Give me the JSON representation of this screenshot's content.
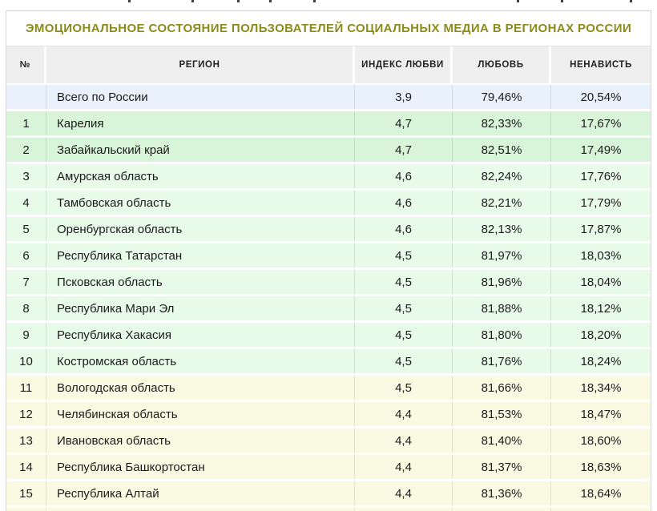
{
  "table": {
    "title": "ЭМОЦИОНАЛЬНОЕ СОСТОЯНИЕ ПОЛЬЗОВАТЕЛЕЙ СОЦИАЛЬНЫХ МЕДИА В РЕГИОНАХ РОССИИ",
    "columns": [
      {
        "label": "№"
      },
      {
        "label": "РЕГИОН"
      },
      {
        "label": "ИНДЕКС ЛЮБВИ"
      },
      {
        "label": "ЛЮБОВЬ"
      },
      {
        "label": "НЕНАВИСТЬ"
      }
    ],
    "rows": [
      {
        "num": "",
        "region": "Всего по России",
        "index": "3,9",
        "love": "79,46%",
        "hate": "20,54%",
        "tone": "blue"
      },
      {
        "num": "1",
        "region": "Карелия",
        "index": "4,7",
        "love": "82,33%",
        "hate": "17,67%",
        "tone": "green_strong"
      },
      {
        "num": "2",
        "region": "Забайкальский край",
        "index": "4,7",
        "love": "82,51%",
        "hate": "17,49%",
        "tone": "green_strong"
      },
      {
        "num": "3",
        "region": "Амурская область",
        "index": "4,6",
        "love": "82,24%",
        "hate": "17,76%",
        "tone": "green"
      },
      {
        "num": "4",
        "region": "Тамбовская область",
        "index": "4,6",
        "love": "82,21%",
        "hate": "17,79%",
        "tone": "green"
      },
      {
        "num": "5",
        "region": "Оренбургская область",
        "index": "4,6",
        "love": "82,13%",
        "hate": "17,87%",
        "tone": "green"
      },
      {
        "num": "6",
        "region": "Республика Татарстан",
        "index": "4,5",
        "love": "81,97%",
        "hate": "18,03%",
        "tone": "green"
      },
      {
        "num": "7",
        "region": "Псковская область",
        "index": "4,5",
        "love": "81,96%",
        "hate": "18,04%",
        "tone": "green"
      },
      {
        "num": "8",
        "region": "Республика Мари Эл",
        "index": "4,5",
        "love": "81,88%",
        "hate": "18,12%",
        "tone": "green"
      },
      {
        "num": "9",
        "region": "Республика Хакасия",
        "index": "4,5",
        "love": "81,80%",
        "hate": "18,20%",
        "tone": "green"
      },
      {
        "num": "10",
        "region": "Костромская область",
        "index": "4,5",
        "love": "81,76%",
        "hate": "18,24%",
        "tone": "green"
      },
      {
        "num": "11",
        "region": "Вологодская область",
        "index": "4,5",
        "love": "81,66%",
        "hate": "18,34%",
        "tone": "cream"
      },
      {
        "num": "12",
        "region": "Челябинская область",
        "index": "4,4",
        "love": "81,53%",
        "hate": "18,47%",
        "tone": "cream"
      },
      {
        "num": "13",
        "region": "Ивановская область",
        "index": "4,4",
        "love": "81,40%",
        "hate": "18,60%",
        "tone": "cream"
      },
      {
        "num": "14",
        "region": "Республика Башкортостан",
        "index": "4,4",
        "love": "81,37%",
        "hate": "18,63%",
        "tone": "cream"
      },
      {
        "num": "15",
        "region": "Республика Алтай",
        "index": "4,4",
        "love": "81,36%",
        "hate": "18,64%",
        "tone": "cream"
      }
    ],
    "partial_next_row": {
      "tone": "cream"
    },
    "colors": {
      "title_text": "#8a8b1a",
      "header_bg": "#efefef",
      "header_text": "#222222",
      "body_text": "#1b1b1b",
      "border": "#d6d6d6",
      "tone_blue": "#e9f2fc",
      "tone_green_strong": "#d9f5d9",
      "tone_green": "#e8fae8",
      "tone_cream": "#fafae3"
    }
  },
  "chart_data": {
    "type": "table",
    "title": "ЭМОЦИОНАЛЬНОЕ СОСТОЯНИЕ ПОЛЬЗОВАТЕЛЕЙ СОЦИАЛЬНЫХ МЕДИА В РЕГИОНАХ РОССИИ",
    "columns": [
      "№",
      "РЕГИОН",
      "ИНДЕКС ЛЮБВИ",
      "ЛЮБОВЬ",
      "НЕНАВИСТЬ"
    ],
    "rows": [
      [
        "",
        "Всего по России",
        "3,9",
        "79,46%",
        "20,54%"
      ],
      [
        "1",
        "Карелия",
        "4,7",
        "82,33%",
        "17,67%"
      ],
      [
        "2",
        "Забайкальский край",
        "4,7",
        "82,51%",
        "17,49%"
      ],
      [
        "3",
        "Амурская область",
        "4,6",
        "82,24%",
        "17,76%"
      ],
      [
        "4",
        "Тамбовская область",
        "4,6",
        "82,21%",
        "17,79%"
      ],
      [
        "5",
        "Оренбургская область",
        "4,6",
        "82,13%",
        "17,87%"
      ],
      [
        "6",
        "Республика Татарстан",
        "4,5",
        "81,97%",
        "18,03%"
      ],
      [
        "7",
        "Псковская область",
        "4,5",
        "81,96%",
        "18,04%"
      ],
      [
        "8",
        "Республика Мари Эл",
        "4,5",
        "81,88%",
        "18,12%"
      ],
      [
        "9",
        "Республика Хакасия",
        "4,5",
        "81,80%",
        "18,20%"
      ],
      [
        "10",
        "Костромская область",
        "4,5",
        "81,76%",
        "18,24%"
      ],
      [
        "11",
        "Вологодская область",
        "4,5",
        "81,66%",
        "18,34%"
      ],
      [
        "12",
        "Челябинская область",
        "4,4",
        "81,53%",
        "18,47%"
      ],
      [
        "13",
        "Ивановская область",
        "4,4",
        "81,40%",
        "18,60%"
      ],
      [
        "14",
        "Республика Башкортостан",
        "4,4",
        "81,37%",
        "18,63%"
      ],
      [
        "15",
        "Республика Алтай",
        "4,4",
        "81,36%",
        "18,64%"
      ]
    ],
    "row_band_colors": {
      "national_total": "#e9f2fc",
      "ranks_1_2": "#d9f5d9",
      "ranks_3_10": "#e8fae8",
      "ranks_11_15": "#fafae3"
    }
  }
}
